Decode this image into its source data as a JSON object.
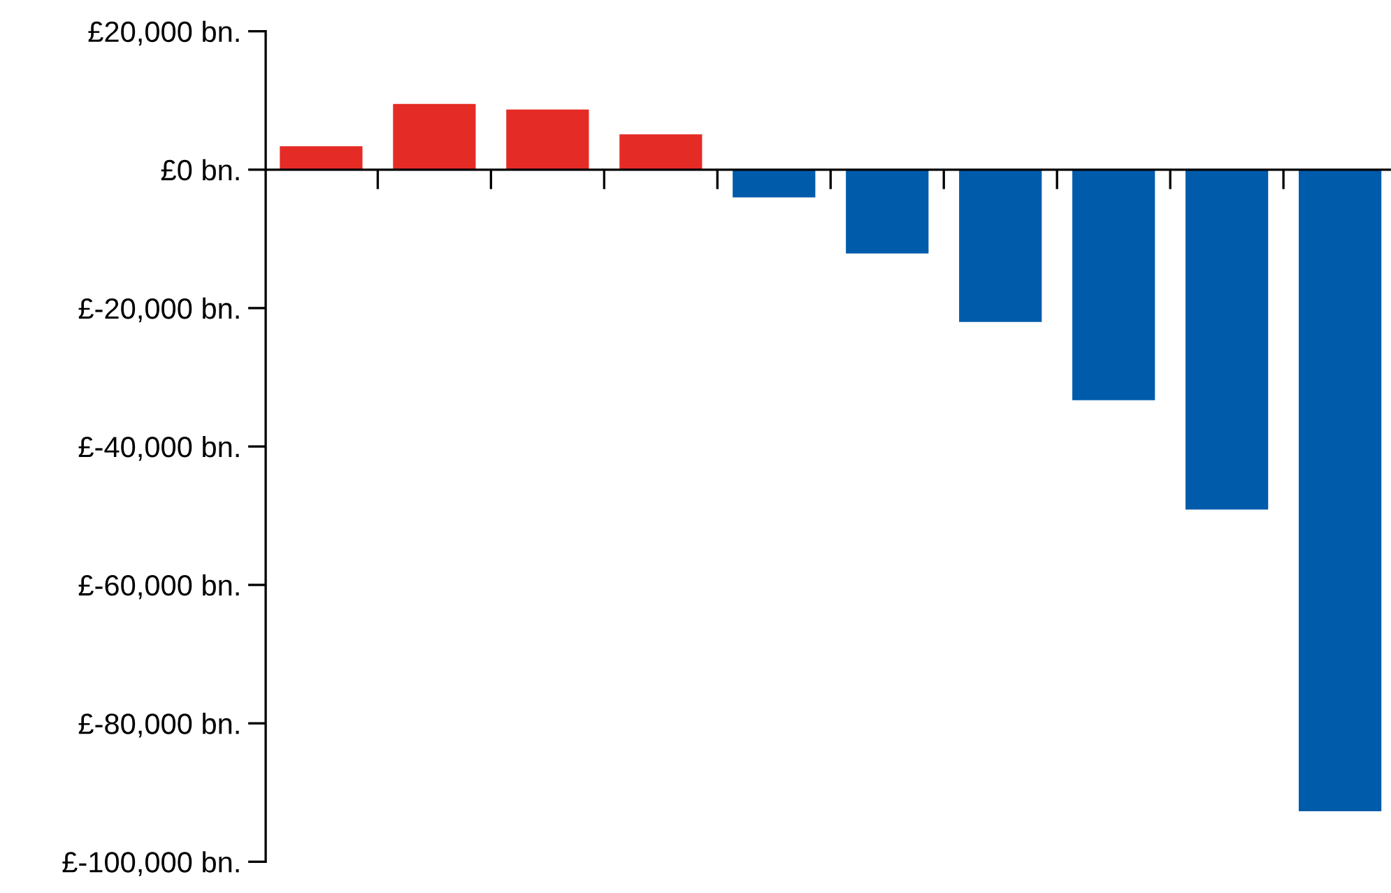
{
  "chart_data": {
    "type": "bar",
    "categories": [
      null,
      null,
      null,
      null,
      null,
      null,
      null,
      null,
      null,
      null
    ],
    "values": [
      3400,
      9500,
      8700,
      5100,
      -4000,
      -12100,
      -22000,
      -33300,
      -49100,
      -92700
    ],
    "colors": [
      "#e52b25",
      "#e52b25",
      "#e52b25",
      "#e52b25",
      "#005baa",
      "#005baa",
      "#005baa",
      "#005baa",
      "#005baa",
      "#005baa"
    ],
    "ylim": [
      -100000,
      20000
    ],
    "yticks": [
      {
        "value": 20000,
        "label": "£20,000 bn."
      },
      {
        "value": 0,
        "label": "£0 bn."
      },
      {
        "value": -20000,
        "label": "£-20,000 bn."
      },
      {
        "value": -40000,
        "label": "£-40,000 bn."
      },
      {
        "value": -60000,
        "label": "£-60,000 bn."
      },
      {
        "value": -80000,
        "label": "£-80,000 bn."
      },
      {
        "value": -100000,
        "label": "£-100,000 bn."
      }
    ],
    "tick_labels": "y"
  }
}
